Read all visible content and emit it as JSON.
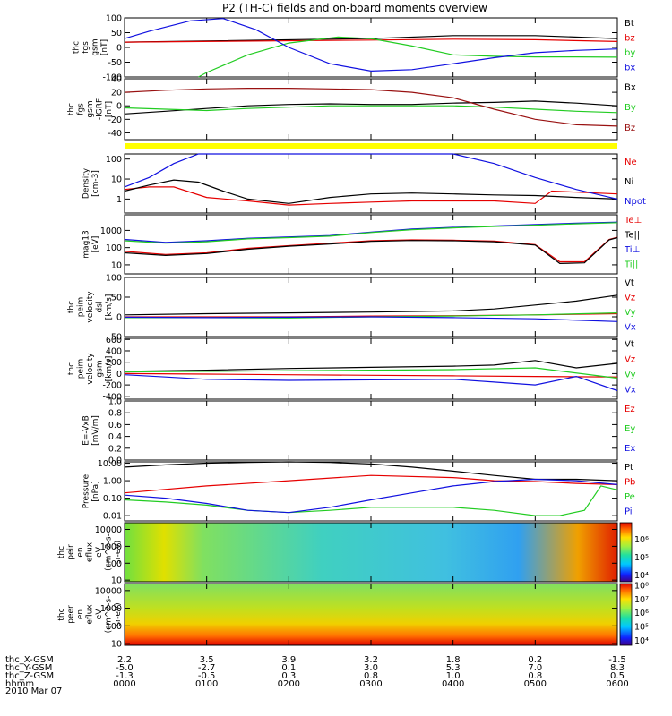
{
  "title": "P2 (TH-C) fields and on-board moments overview",
  "date": "2010 Mar 07",
  "colors": {
    "black": "#000000",
    "red": "#e60000",
    "green": "#22cc22",
    "blue": "#1010e0",
    "darkred": "#991111",
    "yellow": "#ffff00"
  },
  "chart_data": [
    {
      "id": "fgs_dsl",
      "type": "line",
      "ylabel": [
        "thc",
        "fgs",
        "gsm",
        "[nT]"
      ],
      "ylim": [
        -100,
        100
      ],
      "yticks": [
        "100",
        "50",
        "0",
        "-50",
        "-100"
      ],
      "ytick_values": [
        100,
        50,
        0,
        -50,
        -100
      ],
      "series": [
        {
          "name": "Bt",
          "color": "#000000",
          "x": [
            0,
            3,
            4,
            5,
            6
          ],
          "y": [
            18,
            30,
            40,
            40,
            30
          ]
        },
        {
          "name": "bz",
          "color": "#e60000",
          "x": [
            0,
            3,
            4,
            5,
            6
          ],
          "y": [
            18,
            25,
            28,
            26,
            20
          ]
        },
        {
          "name": "by",
          "color": "#22cc22",
          "x": [
            0.9,
            1,
            1.5,
            2,
            2.6,
            3,
            3.5,
            4,
            4.5,
            5,
            5.5,
            6
          ],
          "y": [
            -100,
            -85,
            -25,
            15,
            35,
            30,
            5,
            -25,
            -30,
            -32,
            -32,
            -33
          ]
        },
        {
          "name": "bx",
          "color": "#1010e0",
          "x": [
            0,
            0.3,
            0.8,
            1.2,
            1.6,
            2,
            2.5,
            3,
            3.5,
            4,
            4.5,
            5,
            5.5,
            6
          ],
          "y": [
            30,
            55,
            90,
            98,
            60,
            0,
            -55,
            -80,
            -75,
            -55,
            -35,
            -18,
            -10,
            -5
          ]
        }
      ]
    },
    {
      "id": "fgs_gsm",
      "type": "line",
      "ylabel": [
        "thc",
        "fgs",
        "gsm",
        "-IGRF",
        "[nT]"
      ],
      "ylim": [
        -50,
        40
      ],
      "yticks": [
        "40",
        "20",
        "0",
        "-20",
        "-40"
      ],
      "ytick_values": [
        40,
        20,
        0,
        -20,
        -40
      ],
      "series": [
        {
          "name": "Bx",
          "color": "#000000",
          "x": [
            0,
            0.5,
            1,
            1.5,
            2,
            2.5,
            3,
            3.5,
            4,
            4.5,
            5,
            5.5,
            6
          ],
          "y": [
            -12,
            -8,
            -4,
            0,
            2,
            3,
            2,
            2,
            4,
            5,
            7,
            4,
            0
          ]
        },
        {
          "name": "By",
          "color": "#22cc22",
          "x": [
            0,
            0.5,
            1,
            1.5,
            2,
            2.5,
            3,
            3.5,
            4,
            4.5,
            5,
            5.5,
            6
          ],
          "y": [
            -3,
            -5,
            -7,
            -4,
            -2,
            0,
            0,
            0,
            0,
            -2,
            -5,
            -8,
            -10
          ]
        },
        {
          "name": "Bz",
          "color": "#991111",
          "x": [
            0,
            0.5,
            1,
            1.5,
            2,
            2.5,
            3,
            3.5,
            4,
            4.5,
            5,
            5.5,
            6
          ],
          "y": [
            20,
            23,
            25,
            26,
            26,
            25,
            24,
            20,
            12,
            -5,
            -20,
            -28,
            -30
          ]
        }
      ]
    },
    {
      "id": "density",
      "type": "line",
      "yscale": "log",
      "ylabel": [
        "Density",
        "[cm-3]"
      ],
      "ylim": [
        0.2,
        180
      ],
      "yticks": [
        "100",
        "10",
        "1"
      ],
      "ytick_values": [
        100,
        10,
        1
      ],
      "series": [
        {
          "name": "Ne",
          "color": "#e60000",
          "x": [
            0,
            0.3,
            0.6,
            1,
            1.5,
            2,
            2.5,
            3,
            3.5,
            4,
            4.5,
            5,
            5.2,
            5.5,
            6
          ],
          "y": [
            3,
            4,
            4,
            1.2,
            0.8,
            0.5,
            0.6,
            0.7,
            0.8,
            0.8,
            0.8,
            0.6,
            2.5,
            2.2,
            1.8
          ]
        },
        {
          "name": "Ni",
          "color": "#000000",
          "x": [
            0,
            0.3,
            0.6,
            0.9,
            1.2,
            1.5,
            2,
            2.5,
            3,
            3.5,
            4,
            4.5,
            5,
            5.5,
            6
          ],
          "y": [
            2.5,
            5,
            9,
            7,
            2.5,
            1,
            0.6,
            1.2,
            1.8,
            2,
            1.8,
            1.6,
            1.5,
            1.2,
            1
          ]
        },
        {
          "name": "Npot",
          "color": "#1010e0",
          "x": [
            0,
            0.3,
            0.6,
            0.9,
            1.2,
            1.5,
            2,
            3,
            4,
            4.5,
            5,
            5.5,
            6
          ],
          "y": [
            4,
            12,
            60,
            180,
            180,
            180,
            180,
            180,
            180,
            60,
            12,
            3,
            1
          ]
        }
      ]
    },
    {
      "id": "temperature",
      "type": "line",
      "yscale": "log",
      "ylabel": [
        "mag13",
        "[eV]"
      ],
      "ylim": [
        3,
        8000
      ],
      "yticks": [
        "1000",
        "100",
        "10"
      ],
      "ytick_values": [
        1000,
        100,
        10
      ],
      "series": [
        {
          "name": "Te⊥",
          "color": "#e60000",
          "x": [
            0,
            0.5,
            1,
            1.5,
            2,
            2.5,
            3,
            3.5,
            4,
            4.5,
            5,
            5.3,
            5.6,
            5.9,
            6
          ],
          "y": [
            60,
            40,
            50,
            90,
            130,
            180,
            250,
            280,
            270,
            240,
            150,
            15,
            15,
            300,
            400
          ]
        },
        {
          "name": "Te||",
          "color": "#000000",
          "x": [
            0,
            0.5,
            1,
            1.5,
            2,
            2.5,
            3,
            3.5,
            4,
            4.5,
            5,
            5.3,
            5.6,
            5.9,
            6
          ],
          "y": [
            50,
            35,
            45,
            80,
            120,
            160,
            230,
            260,
            250,
            220,
            140,
            12,
            13,
            280,
            380
          ]
        },
        {
          "name": "Ti⊥",
          "color": "#1010e0",
          "x": [
            0,
            0.5,
            1,
            1.5,
            2,
            2.5,
            3,
            3.5,
            4,
            4.5,
            5,
            5.5,
            6
          ],
          "y": [
            300,
            200,
            250,
            350,
            420,
            500,
            800,
            1200,
            1500,
            1800,
            2200,
            2600,
            3000
          ]
        },
        {
          "name": "Ti||",
          "color": "#22cc22",
          "x": [
            0,
            0.5,
            1,
            1.5,
            2,
            2.5,
            3,
            3.5,
            4,
            4.5,
            5,
            5.5,
            6
          ],
          "y": [
            250,
            180,
            220,
            320,
            380,
            460,
            750,
            1100,
            1400,
            1700,
            2000,
            2400,
            2800
          ]
        }
      ]
    },
    {
      "id": "peim_velocity",
      "type": "line",
      "ylabel": [
        "thc",
        "peim",
        "velocity",
        "dsl",
        "[km/s]"
      ],
      "ylim": [
        -50,
        100
      ],
      "yticks": [
        "100",
        "50",
        "0",
        "-50"
      ],
      "ytick_values": [
        100,
        50,
        0,
        -50
      ],
      "series": [
        {
          "name": "Vt",
          "color": "#000000",
          "x": [
            0,
            1,
            2,
            3,
            4,
            4.5,
            5,
            5.5,
            6
          ],
          "y": [
            5,
            8,
            10,
            12,
            15,
            20,
            30,
            40,
            55
          ]
        },
        {
          "name": "Vz",
          "color": "#e60000",
          "x": [
            0,
            1,
            2,
            3,
            4,
            5,
            6
          ],
          "y": [
            0,
            0,
            0,
            2,
            3,
            5,
            8
          ]
        },
        {
          "name": "Vy",
          "color": "#22cc22",
          "x": [
            0,
            1,
            2,
            3,
            4,
            5,
            6
          ],
          "y": [
            -2,
            -2,
            -3,
            0,
            2,
            5,
            10
          ]
        },
        {
          "name": "Vx",
          "color": "#1010e0",
          "x": [
            0,
            1,
            2,
            3,
            4,
            5,
            6
          ],
          "y": [
            -1,
            -2,
            -1,
            0,
            -2,
            -5,
            -12
          ]
        }
      ]
    },
    {
      "id": "peir_velocity",
      "type": "line",
      "ylabel": [
        "thc",
        "peim",
        "velocity",
        "gsm",
        "[km/s]"
      ],
      "ylim": [
        -450,
        620
      ],
      "yticks": [
        "600",
        "400",
        "200",
        "0",
        "-200",
        "-400"
      ],
      "ytick_values": [
        600,
        400,
        200,
        0,
        -200,
        -400
      ],
      "series": [
        {
          "name": "Vt",
          "color": "#000000",
          "x": [
            0,
            1,
            2,
            3,
            4,
            4.5,
            5,
            5.5,
            6
          ],
          "y": [
            40,
            60,
            90,
            110,
            130,
            150,
            230,
            100,
            180
          ]
        },
        {
          "name": "Vz",
          "color": "#e60000",
          "x": [
            0,
            1,
            2,
            3,
            4,
            5,
            6
          ],
          "y": [
            0,
            -10,
            -20,
            -30,
            -40,
            -50,
            -60
          ]
        },
        {
          "name": "Vy",
          "color": "#22cc22",
          "x": [
            0,
            1,
            2,
            3,
            4,
            5,
            6
          ],
          "y": [
            30,
            40,
            50,
            60,
            70,
            100,
            -80
          ]
        },
        {
          "name": "Vx",
          "color": "#1010e0",
          "x": [
            0,
            0.5,
            1,
            2,
            3,
            4,
            4.5,
            5,
            5.5,
            6
          ],
          "y": [
            -20,
            -60,
            -100,
            -120,
            -110,
            -100,
            -150,
            -200,
            -50,
            -300
          ]
        }
      ]
    },
    {
      "id": "efield",
      "type": "line",
      "ylabel": [
        "E=-VxB",
        "[mV/m]"
      ],
      "ylim": [
        0,
        1
      ],
      "yticks": [
        "1.0",
        "0.8",
        "0.6",
        "0.4",
        "0.2",
        "0.0"
      ],
      "ytick_values": [
        1.0,
        0.8,
        0.6,
        0.4,
        0.2,
        0.0
      ],
      "series": [
        {
          "name": "Ez",
          "color": "#e60000",
          "x": [],
          "y": []
        },
        {
          "name": "Ey",
          "color": "#22cc22",
          "x": [],
          "y": []
        },
        {
          "name": "Ex",
          "color": "#1010e0",
          "x": [],
          "y": []
        }
      ]
    },
    {
      "id": "pressure",
      "type": "line",
      "yscale": "log",
      "ylabel": [
        "Pressure",
        "[nPa]"
      ],
      "ylim": [
        0.005,
        12
      ],
      "yticks": [
        "10.00",
        "1.00",
        "0.10",
        "0.01"
      ],
      "ytick_values": [
        10,
        1,
        0.1,
        0.01
      ],
      "series": [
        {
          "name": "Pt",
          "color": "#000000",
          "x": [
            0,
            0.5,
            1,
            1.5,
            2,
            2.5,
            3,
            3.5,
            4,
            4.5,
            5,
            5.5,
            6
          ],
          "y": [
            6,
            8,
            10,
            11,
            12,
            11,
            9,
            6,
            3.5,
            2,
            1.2,
            1.2,
            1
          ]
        },
        {
          "name": "Pb",
          "color": "#e60000",
          "x": [
            0,
            1,
            2,
            3,
            4,
            4.5,
            5,
            5.5,
            6
          ],
          "y": [
            0.2,
            0.5,
            1,
            2,
            1.5,
            1,
            0.9,
            0.7,
            0.6
          ]
        },
        {
          "name": "Pe",
          "color": "#22cc22",
          "x": [
            0,
            0.5,
            1,
            1.5,
            2,
            2.5,
            3,
            3.5,
            4,
            4.5,
            5,
            5.3,
            5.6,
            5.8,
            6
          ],
          "y": [
            0.08,
            0.06,
            0.04,
            0.02,
            0.015,
            0.02,
            0.03,
            0.03,
            0.03,
            0.02,
            0.01,
            0.01,
            0.02,
            0.5,
            0.3
          ]
        },
        {
          "name": "Pi",
          "color": "#1010e0",
          "x": [
            0,
            0.5,
            1,
            1.5,
            2,
            2.5,
            3,
            3.5,
            4,
            4.5,
            5,
            5.5,
            6
          ],
          "y": [
            0.15,
            0.1,
            0.05,
            0.02,
            0.015,
            0.03,
            0.08,
            0.2,
            0.5,
            0.9,
            1.2,
            1,
            0.6
          ]
        }
      ]
    },
    {
      "id": "peir_eflux",
      "type": "heatmap",
      "yscale": "log",
      "ylabel": [
        "thc",
        "peir",
        "en",
        "eflux",
        "eV",
        "(cm^2-s-",
        "sr-eV)"
      ],
      "ylim": [
        8,
        25000
      ],
      "yticks": [
        "10000",
        "1000",
        "100",
        "10"
      ],
      "ytick_values": [
        10000,
        1000,
        100,
        10
      ],
      "colorbar": {
        "labels": [
          "10⁶",
          "10⁵",
          "10⁴"
        ],
        "exponents": [
          6,
          5,
          4
        ],
        "range": [
          3.6,
          6.9
        ]
      }
    },
    {
      "id": "peer_eflux",
      "type": "heatmap",
      "yscale": "log",
      "ylabel": [
        "thc",
        "peer",
        "en",
        "eflux",
        "eV",
        "(cm^2-s-",
        "sr-eV)"
      ],
      "ylim": [
        8,
        25000
      ],
      "yticks": [
        "10000",
        "1000",
        "100",
        "10"
      ],
      "ytick_values": [
        10000,
        1000,
        100,
        10
      ],
      "colorbar": {
        "labels": [
          "10⁸",
          "10⁷",
          "10⁶",
          "10⁵",
          "10⁴"
        ],
        "exponents": [
          8,
          7,
          6,
          5,
          4
        ],
        "range": [
          3.6,
          8.1
        ]
      }
    }
  ],
  "ephemeris": {
    "rows": [
      {
        "label": "thc_X-GSM",
        "values": [
          "2.2",
          "3.5",
          "3.9",
          "3.2",
          "1.8",
          "0.2",
          "-1.5"
        ]
      },
      {
        "label": "thc_Y-GSM",
        "values": [
          "-5.0",
          "-2.7",
          "0.1",
          "3.0",
          "5.3",
          "7.0",
          "8.3"
        ]
      },
      {
        "label": "thc_Z-GSM",
        "values": [
          "-1.3",
          "-0.5",
          "0.3",
          "0.8",
          "1.0",
          "0.8",
          "0.5"
        ]
      },
      {
        "label": "hhmm",
        "values": [
          "0000",
          "0100",
          "0200",
          "0300",
          "0400",
          "0500",
          "0600"
        ]
      }
    ]
  }
}
